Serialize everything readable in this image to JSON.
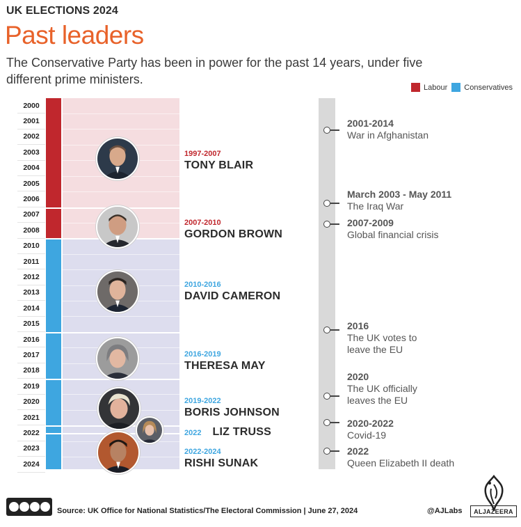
{
  "header": {
    "kicker": "UK ELECTIONS 2024",
    "title": "Past leaders",
    "subtitle": "The Conservative Party has been in power for the past 14 years, under five different prime ministers."
  },
  "legend": [
    {
      "label": "Labour",
      "color": "#c0272d"
    },
    {
      "label": "Conservatives",
      "color": "#3ea6e0"
    }
  ],
  "colors": {
    "labour": "#c0272d",
    "labour_bg": "#f5dde0",
    "conservative": "#3ea6e0",
    "conservative_bg": "#ddddee",
    "title_orange": "#e8622a"
  },
  "years": [
    "2000",
    "2001",
    "2002",
    "2003",
    "2004",
    "2005",
    "2006",
    "2007",
    "2008",
    "2010",
    "2011",
    "2012",
    "2013",
    "2014",
    "2015",
    "2016",
    "2017",
    "2018",
    "2019",
    "2020",
    "2021",
    "2022",
    "2023",
    "2024"
  ],
  "leaders": [
    {
      "term": "1997-2007",
      "name": "TONY BLAIR",
      "party": "Labour",
      "photo": "tony-blair-photo"
    },
    {
      "term": "2007-2010",
      "name": "GORDON BROWN",
      "party": "Labour",
      "photo": "gordon-brown-photo"
    },
    {
      "term": "2010-2016",
      "name": "DAVID CAMERON",
      "party": "Conservatives",
      "photo": "david-cameron-photo"
    },
    {
      "term": "2016-2019",
      "name": "THERESA MAY",
      "party": "Conservatives",
      "photo": "theresa-may-photo"
    },
    {
      "term": "2019-2022",
      "name": "BORIS JOHNSON",
      "party": "Conservatives",
      "photo": "boris-johnson-photo"
    },
    {
      "term": "2022",
      "name": "LIZ TRUSS",
      "party": "Conservatives",
      "photo": "liz-truss-photo"
    },
    {
      "term": "2022-2024",
      "name": "RISHI SUNAK",
      "party": "Conservatives",
      "photo": "rishi-sunak-photo"
    }
  ],
  "events": [
    {
      "date": "2001-2014",
      "desc": "War in Afghanistan"
    },
    {
      "date": "March 2003 - May 2011",
      "desc": "The Iraq War"
    },
    {
      "date": "2007-2009",
      "desc": "Global financial crisis"
    },
    {
      "date": "2016",
      "desc": "The UK votes to leave the EU"
    },
    {
      "date": "2020",
      "desc": "The UK officially leaves the EU"
    },
    {
      "date": "2020-2022",
      "desc": "Covid-19"
    },
    {
      "date": "2022",
      "desc": "Queen Elizabeth II death"
    }
  ],
  "footer": {
    "source": "Source: UK Office for National Statistics/The Electoral Commission   |   June 27, 2024",
    "handle": "@AJLabs",
    "brand": "ALJAZEERA",
    "license_icon": "creative-commons-by-nc-sa-icon"
  }
}
